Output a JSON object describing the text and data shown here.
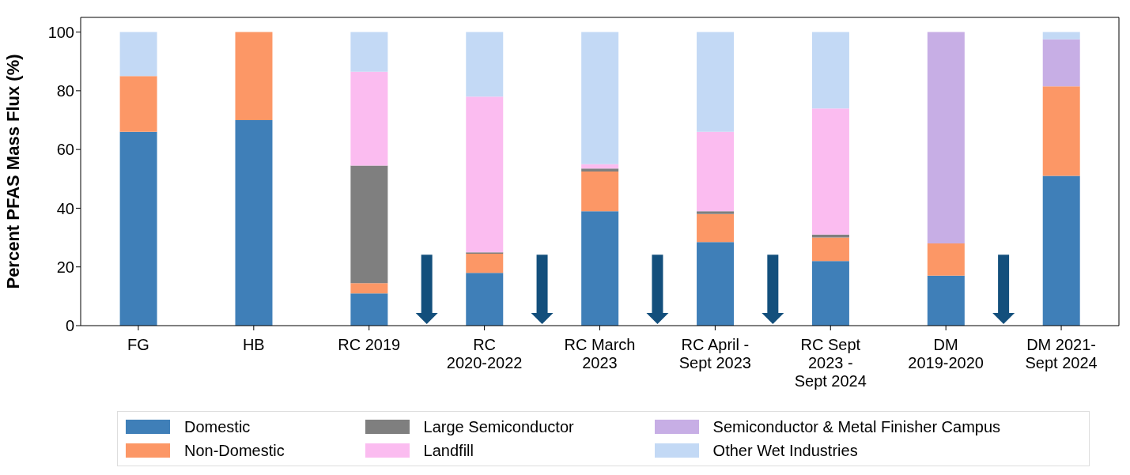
{
  "chart_data": {
    "type": "bar",
    "stacked": true,
    "ylabel": "Percent PFAS Mass Flux (%)",
    "categories": [
      "FG",
      "HB",
      "RC 2019",
      "RC\n2020-2022",
      "RC March\n2023",
      "RC April -\nSept 2023",
      "RC Sept\n2023 -\nSept 2024",
      "DM\n2019-2020",
      "DM 2021-\nSept 2024"
    ],
    "series": [
      {
        "name": "Domestic",
        "color": "#3f7fb8",
        "values": [
          66,
          70,
          11,
          18,
          39,
          28.5,
          22,
          17,
          51
        ]
      },
      {
        "name": "Non-Domestic",
        "color": "#fc9766",
        "values": [
          19,
          30,
          3.5,
          6.5,
          13.5,
          9.5,
          8,
          11,
          30.5
        ]
      },
      {
        "name": "Large Semiconductor",
        "color": "#7f7f7f",
        "values": [
          0,
          0,
          40,
          0.5,
          1,
          1,
          1,
          0,
          0
        ]
      },
      {
        "name": "Landfill",
        "color": "#fbbcf0",
        "values": [
          0,
          0,
          32,
          53,
          1.5,
          27,
          43,
          0,
          0
        ]
      },
      {
        "name": "Semiconductor & Metal Finisher Campus",
        "color": "#c7aee5",
        "values": [
          0,
          0,
          0,
          0,
          0,
          0,
          0,
          72,
          16
        ]
      },
      {
        "name": "Other Wet Industries",
        "color": "#c3d9f5",
        "values": [
          15,
          0,
          13.5,
          22,
          45,
          34,
          26,
          0,
          2.5
        ]
      }
    ],
    "ylim": [
      0,
      105
    ],
    "yticks": [
      0,
      20,
      40,
      60,
      80,
      100
    ],
    "legend": "bottom"
  }
}
